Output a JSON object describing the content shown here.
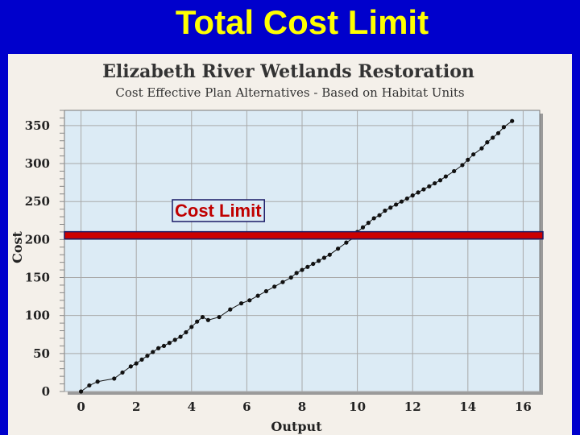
{
  "slide": {
    "title": "Total Cost Limit"
  },
  "colors": {
    "background": "#0000cc",
    "title": "#ffff00",
    "plot_bg": "#dcebf5",
    "limit_line": "#cc0000",
    "points": "#111111"
  },
  "chart_data": {
    "type": "scatter",
    "title": "Elizabeth River Wetlands Restoration",
    "subtitle": "Cost Effective Plan Alternatives - Based on Habitat Units",
    "xlabel": "Output",
    "ylabel": "Cost",
    "xlim": [
      -0.6,
      16.6
    ],
    "ylim": [
      0,
      370
    ],
    "xticks": [
      0,
      2,
      4,
      6,
      8,
      10,
      12,
      14,
      16
    ],
    "yticks": [
      0,
      50,
      100,
      150,
      200,
      250,
      300,
      350
    ],
    "grid": true,
    "annotation": {
      "label": "Cost Limit",
      "y": 205
    },
    "series": [
      {
        "x": [
          0.0,
          0.3,
          0.6,
          1.2,
          1.5,
          1.8,
          2.0,
          2.2,
          2.4,
          2.6,
          2.8,
          3.0,
          3.2,
          3.4,
          3.6,
          3.8,
          4.0,
          4.2,
          4.4,
          4.6,
          5.0,
          5.4,
          5.8,
          6.1,
          6.4,
          6.7,
          7.0,
          7.3,
          7.6,
          7.8,
          8.0,
          8.2,
          8.4,
          8.6,
          8.8,
          9.0,
          9.3,
          9.6,
          9.9,
          10.0,
          10.2,
          10.4,
          10.6,
          10.8,
          11.0,
          11.2,
          11.4,
          11.6,
          11.8,
          12.0,
          12.2,
          12.4,
          12.6,
          12.8,
          13.0,
          13.2,
          13.5,
          13.8,
          14.0,
          14.2,
          14.5,
          14.7,
          14.9,
          15.1,
          15.3,
          15.6
        ],
        "y": [
          0,
          8,
          13,
          17,
          25,
          33,
          37,
          42,
          47,
          52,
          57,
          60,
          64,
          68,
          72,
          78,
          85,
          92,
          98,
          94,
          98,
          108,
          116,
          120,
          126,
          132,
          138,
          144,
          150,
          156,
          160,
          164,
          168,
          172,
          176,
          180,
          188,
          196,
          203,
          210,
          216,
          222,
          228,
          232,
          238,
          242,
          246,
          250,
          254,
          258,
          262,
          266,
          270,
          274,
          278,
          283,
          290,
          298,
          305,
          312,
          320,
          328,
          334,
          340,
          348,
          356
        ]
      }
    ]
  }
}
